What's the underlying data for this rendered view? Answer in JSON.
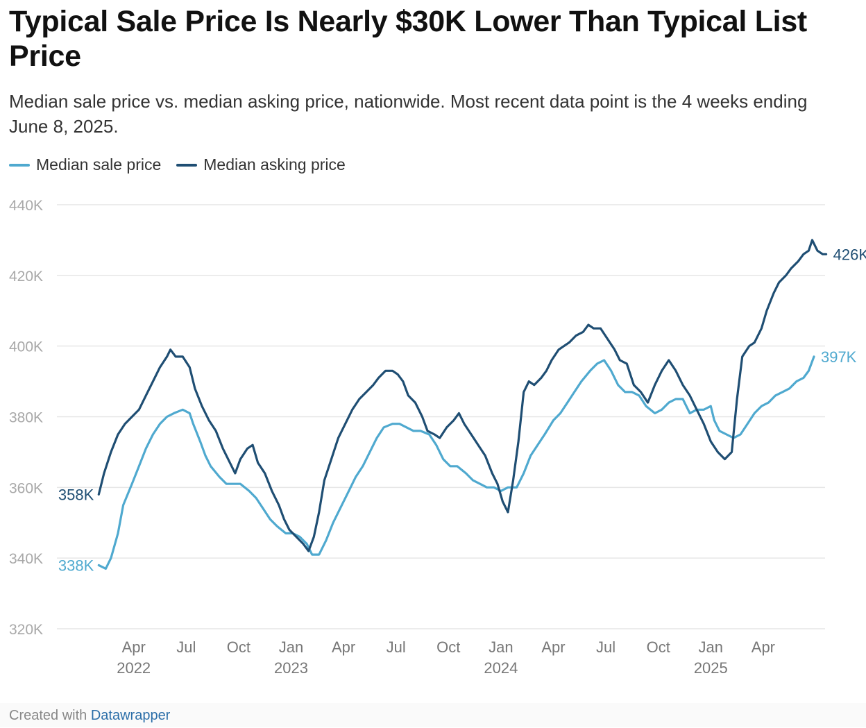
{
  "header": {
    "title": "Typical Sale Price Is Nearly $30K Lower Than Typical List Price",
    "subtitle": "Median sale price vs. median asking price, nationwide. Most recent data point is the 4 weeks ending June 8, 2025."
  },
  "legend": {
    "items": [
      {
        "label": "Median sale price",
        "color": "#4fa9cf"
      },
      {
        "label": "Median asking price",
        "color": "#1f4e73"
      }
    ]
  },
  "footer": {
    "prefix": "Created with",
    "brand": "Datawrapper"
  },
  "chart_data": {
    "type": "line",
    "title": "Typical Sale Price Is Nearly $30K Lower Than Typical List Price",
    "xlabel": "",
    "ylabel": "",
    "ylim": [
      320000,
      440000
    ],
    "grid": true,
    "legend_position": "top-left",
    "yticks": [
      {
        "value": 320000,
        "label": "320K"
      },
      {
        "value": 340000,
        "label": "340K"
      },
      {
        "value": 360000,
        "label": "360K"
      },
      {
        "value": 380000,
        "label": "380K"
      },
      {
        "value": 400000,
        "label": "400K"
      },
      {
        "value": 420000,
        "label": "420K"
      },
      {
        "value": 440000,
        "label": "440K"
      }
    ],
    "xticks": [
      {
        "label": "Apr",
        "year": "2022",
        "month": 3.5
      },
      {
        "label": "Jul",
        "year": "",
        "month": 6.5
      },
      {
        "label": "Oct",
        "year": "",
        "month": 9.5
      },
      {
        "label": "Jan",
        "year": "2023",
        "month": 12.5
      },
      {
        "label": "Apr",
        "year": "",
        "month": 15.5
      },
      {
        "label": "Jul",
        "year": "",
        "month": 18.5
      },
      {
        "label": "Oct",
        "year": "",
        "month": 21.5
      },
      {
        "label": "Jan",
        "year": "2024",
        "month": 24.5
      },
      {
        "label": "Apr",
        "year": "",
        "month": 27.5
      },
      {
        "label": "Jul",
        "year": "",
        "month": 30.5
      },
      {
        "label": "Oct",
        "year": "",
        "month": 33.5
      },
      {
        "label": "Jan",
        "year": "2025",
        "month": 36.5
      },
      {
        "label": "Apr",
        "year": "",
        "month": 39.5
      }
    ],
    "series": [
      {
        "name": "Median sale price",
        "color": "#4fa9cf",
        "start_label": "338K",
        "end_label": "397K",
        "points": [
          [
            1.5,
            338000
          ],
          [
            1.9,
            337000
          ],
          [
            2.2,
            340000
          ],
          [
            2.6,
            347000
          ],
          [
            2.9,
            355000
          ],
          [
            3.4,
            361000
          ],
          [
            3.8,
            366000
          ],
          [
            4.2,
            371000
          ],
          [
            4.6,
            375000
          ],
          [
            5.0,
            378000
          ],
          [
            5.4,
            380000
          ],
          [
            5.8,
            381000
          ],
          [
            6.3,
            382000
          ],
          [
            6.7,
            381000
          ],
          [
            6.9,
            378000
          ],
          [
            7.3,
            373000
          ],
          [
            7.6,
            369000
          ],
          [
            7.9,
            366000
          ],
          [
            8.4,
            363000
          ],
          [
            8.8,
            361000
          ],
          [
            9.2,
            361000
          ],
          [
            9.6,
            361000
          ],
          [
            10.1,
            359000
          ],
          [
            10.5,
            357000
          ],
          [
            10.9,
            354000
          ],
          [
            11.3,
            351000
          ],
          [
            11.7,
            349000
          ],
          [
            12.2,
            347000
          ],
          [
            12.6,
            347000
          ],
          [
            13.0,
            346000
          ],
          [
            13.4,
            344000
          ],
          [
            13.7,
            341000
          ],
          [
            14.1,
            341000
          ],
          [
            14.5,
            345000
          ],
          [
            14.9,
            350000
          ],
          [
            15.4,
            355000
          ],
          [
            15.8,
            359000
          ],
          [
            16.2,
            363000
          ],
          [
            16.6,
            366000
          ],
          [
            17.0,
            370000
          ],
          [
            17.4,
            374000
          ],
          [
            17.8,
            377000
          ],
          [
            18.3,
            378000
          ],
          [
            18.7,
            378000
          ],
          [
            19.1,
            377000
          ],
          [
            19.5,
            376000
          ],
          [
            19.9,
            376000
          ],
          [
            20.4,
            375000
          ],
          [
            20.8,
            372000
          ],
          [
            21.2,
            368000
          ],
          [
            21.6,
            366000
          ],
          [
            22.0,
            366000
          ],
          [
            22.5,
            364000
          ],
          [
            22.9,
            362000
          ],
          [
            23.3,
            361000
          ],
          [
            23.7,
            360000
          ],
          [
            24.1,
            360000
          ],
          [
            24.5,
            359000
          ],
          [
            24.9,
            360000
          ],
          [
            25.4,
            360000
          ],
          [
            25.8,
            364000
          ],
          [
            26.2,
            369000
          ],
          [
            26.6,
            372000
          ],
          [
            27.0,
            375000
          ],
          [
            27.5,
            379000
          ],
          [
            27.9,
            381000
          ],
          [
            28.3,
            384000
          ],
          [
            28.7,
            387000
          ],
          [
            29.1,
            390000
          ],
          [
            29.6,
            393000
          ],
          [
            30.0,
            395000
          ],
          [
            30.4,
            396000
          ],
          [
            30.8,
            393000
          ],
          [
            31.2,
            389000
          ],
          [
            31.6,
            387000
          ],
          [
            32.0,
            387000
          ],
          [
            32.4,
            386000
          ],
          [
            32.8,
            383000
          ],
          [
            33.3,
            381000
          ],
          [
            33.7,
            382000
          ],
          [
            34.1,
            384000
          ],
          [
            34.5,
            385000
          ],
          [
            34.9,
            385000
          ],
          [
            35.3,
            381000
          ],
          [
            35.7,
            382000
          ],
          [
            36.1,
            382000
          ],
          [
            36.5,
            383000
          ],
          [
            36.7,
            379000
          ],
          [
            37.0,
            376000
          ],
          [
            37.4,
            375000
          ],
          [
            37.8,
            374000
          ],
          [
            38.2,
            375000
          ],
          [
            38.6,
            378000
          ],
          [
            39.0,
            381000
          ],
          [
            39.4,
            383000
          ],
          [
            39.8,
            384000
          ],
          [
            40.2,
            386000
          ],
          [
            40.6,
            387000
          ],
          [
            41.0,
            388000
          ],
          [
            41.4,
            390000
          ],
          [
            41.8,
            391000
          ],
          [
            42.1,
            393000
          ],
          [
            42.4,
            397000
          ]
        ]
      },
      {
        "name": "Median asking price",
        "color": "#1f4e73",
        "start_label": "358K",
        "end_label": "426K",
        "points": [
          [
            1.5,
            358000
          ],
          [
            1.8,
            364000
          ],
          [
            2.2,
            370000
          ],
          [
            2.6,
            375000
          ],
          [
            3.0,
            378000
          ],
          [
            3.4,
            380000
          ],
          [
            3.8,
            382000
          ],
          [
            4.2,
            386000
          ],
          [
            4.6,
            390000
          ],
          [
            5.0,
            394000
          ],
          [
            5.4,
            397000
          ],
          [
            5.6,
            399000
          ],
          [
            5.9,
            397000
          ],
          [
            6.3,
            397000
          ],
          [
            6.7,
            394000
          ],
          [
            7.0,
            388000
          ],
          [
            7.4,
            383000
          ],
          [
            7.8,
            379000
          ],
          [
            8.2,
            376000
          ],
          [
            8.6,
            371000
          ],
          [
            9.0,
            367000
          ],
          [
            9.3,
            364000
          ],
          [
            9.6,
            368000
          ],
          [
            10.0,
            371000
          ],
          [
            10.3,
            372000
          ],
          [
            10.6,
            367000
          ],
          [
            11.0,
            364000
          ],
          [
            11.4,
            359000
          ],
          [
            11.8,
            355000
          ],
          [
            12.1,
            351000
          ],
          [
            12.4,
            348000
          ],
          [
            12.8,
            346000
          ],
          [
            13.2,
            344000
          ],
          [
            13.5,
            342000
          ],
          [
            13.8,
            346000
          ],
          [
            14.1,
            353000
          ],
          [
            14.4,
            362000
          ],
          [
            14.8,
            368000
          ],
          [
            15.2,
            374000
          ],
          [
            15.6,
            378000
          ],
          [
            16.0,
            382000
          ],
          [
            16.4,
            385000
          ],
          [
            16.8,
            387000
          ],
          [
            17.2,
            389000
          ],
          [
            17.5,
            391000
          ],
          [
            17.9,
            393000
          ],
          [
            18.3,
            393000
          ],
          [
            18.6,
            392000
          ],
          [
            18.9,
            390000
          ],
          [
            19.2,
            386000
          ],
          [
            19.6,
            384000
          ],
          [
            20.0,
            380000
          ],
          [
            20.3,
            376000
          ],
          [
            20.7,
            375000
          ],
          [
            21.0,
            374000
          ],
          [
            21.4,
            377000
          ],
          [
            21.8,
            379000
          ],
          [
            22.1,
            381000
          ],
          [
            22.4,
            378000
          ],
          [
            22.8,
            375000
          ],
          [
            23.2,
            372000
          ],
          [
            23.6,
            369000
          ],
          [
            24.0,
            364000
          ],
          [
            24.3,
            361000
          ],
          [
            24.6,
            356000
          ],
          [
            24.9,
            353000
          ],
          [
            25.2,
            362000
          ],
          [
            25.5,
            373000
          ],
          [
            25.8,
            387000
          ],
          [
            26.1,
            390000
          ],
          [
            26.4,
            389000
          ],
          [
            26.8,
            391000
          ],
          [
            27.1,
            393000
          ],
          [
            27.4,
            396000
          ],
          [
            27.8,
            399000
          ],
          [
            28.1,
            400000
          ],
          [
            28.4,
            401000
          ],
          [
            28.8,
            403000
          ],
          [
            29.2,
            404000
          ],
          [
            29.5,
            406000
          ],
          [
            29.8,
            405000
          ],
          [
            30.2,
            405000
          ],
          [
            30.6,
            402000
          ],
          [
            31.0,
            399000
          ],
          [
            31.3,
            396000
          ],
          [
            31.7,
            395000
          ],
          [
            32.1,
            389000
          ],
          [
            32.5,
            387000
          ],
          [
            32.9,
            384000
          ],
          [
            33.3,
            389000
          ],
          [
            33.7,
            393000
          ],
          [
            34.1,
            396000
          ],
          [
            34.5,
            393000
          ],
          [
            34.9,
            389000
          ],
          [
            35.3,
            386000
          ],
          [
            35.7,
            382000
          ],
          [
            36.1,
            378000
          ],
          [
            36.5,
            373000
          ],
          [
            36.9,
            370000
          ],
          [
            37.3,
            368000
          ],
          [
            37.7,
            370000
          ],
          [
            38.0,
            385000
          ],
          [
            38.3,
            397000
          ],
          [
            38.7,
            400000
          ],
          [
            39.0,
            401000
          ],
          [
            39.4,
            405000
          ],
          [
            39.7,
            410000
          ],
          [
            40.1,
            415000
          ],
          [
            40.4,
            418000
          ],
          [
            40.8,
            420000
          ],
          [
            41.1,
            422000
          ],
          [
            41.5,
            424000
          ],
          [
            41.8,
            426000
          ],
          [
            42.1,
            427000
          ],
          [
            42.3,
            430000
          ],
          [
            42.6,
            427000
          ],
          [
            42.9,
            426000
          ],
          [
            43.1,
            426000
          ]
        ]
      }
    ]
  }
}
